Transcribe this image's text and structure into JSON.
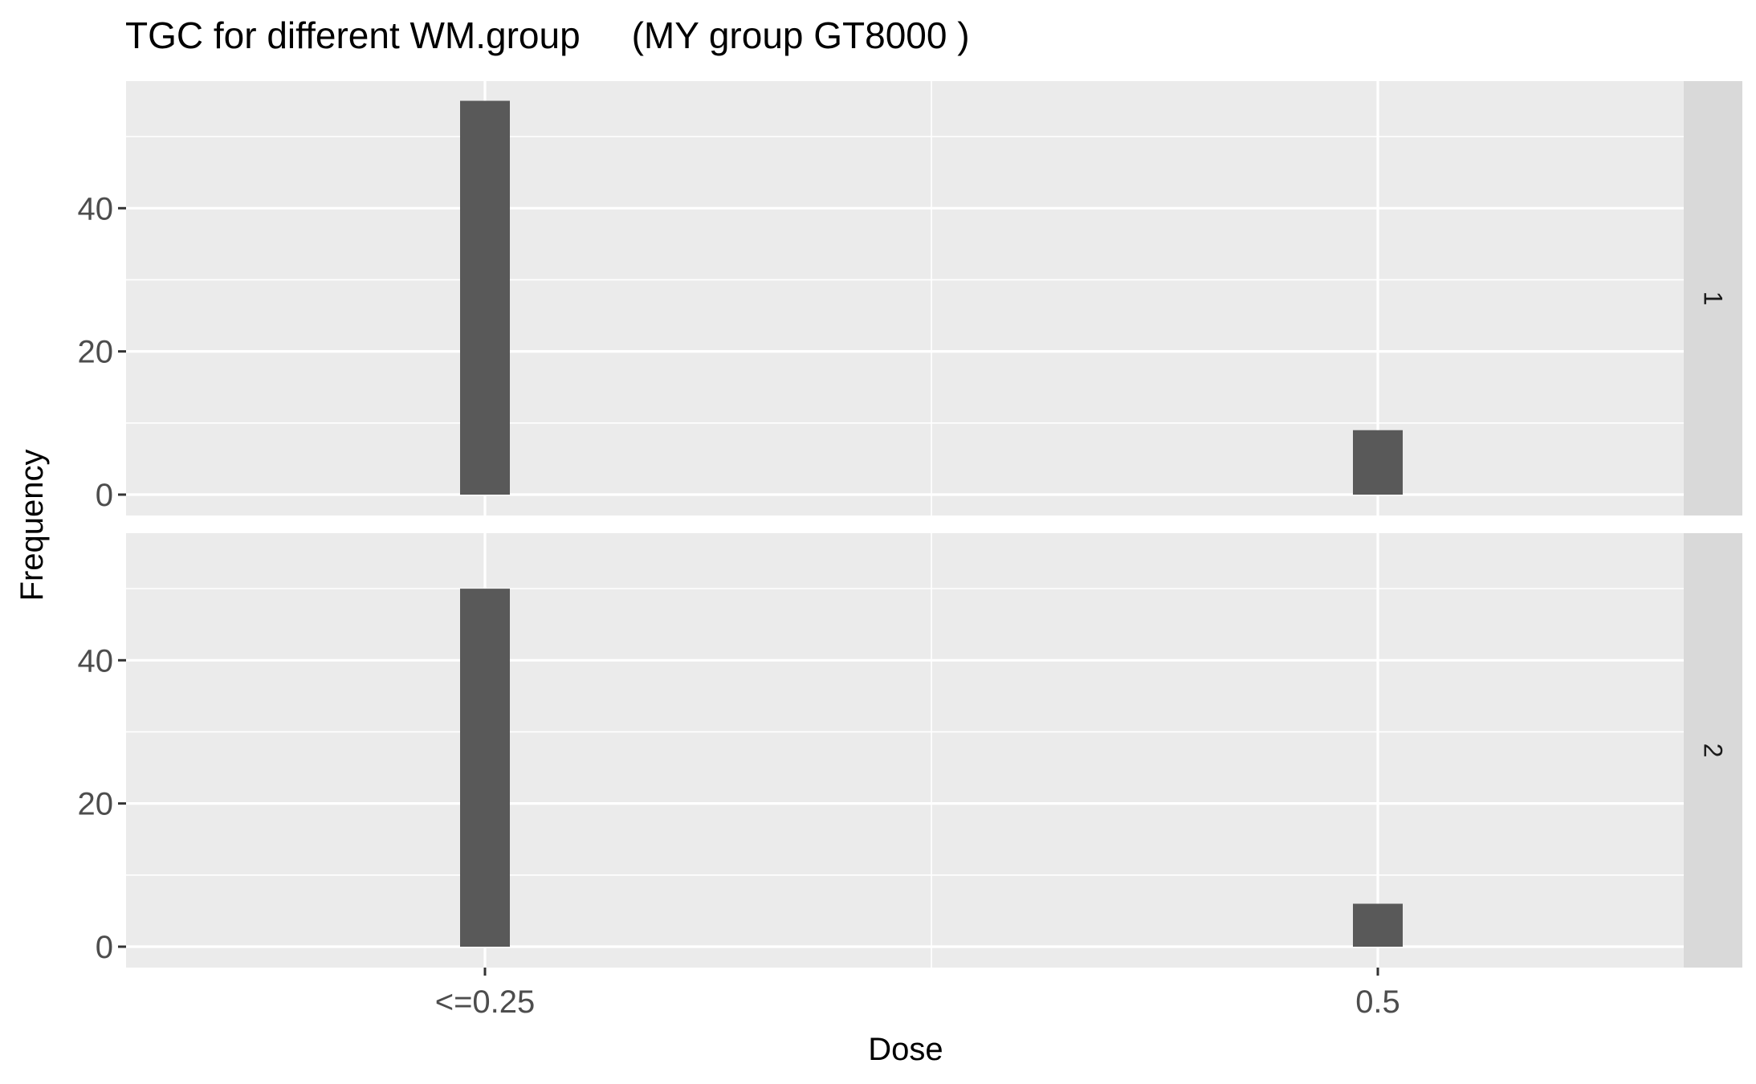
{
  "chart_data": {
    "type": "bar",
    "title": "TGC for different WM.group     (MY group GT8000 )",
    "xlabel": "Dose",
    "ylabel": "Frequency",
    "categories": [
      "<=0.25",
      "0.5"
    ],
    "y_ticks": [
      0,
      20,
      40
    ],
    "ylim": [
      0,
      57.75
    ],
    "grid": true,
    "facets": [
      {
        "strip": "1",
        "values": [
          55,
          9
        ]
      },
      {
        "strip": "2",
        "values": [
          50,
          6
        ]
      }
    ],
    "colors": {
      "bar": "#595959",
      "panel": "#ebebeb",
      "strip": "#d9d9d9",
      "grid": "#ffffff"
    }
  }
}
